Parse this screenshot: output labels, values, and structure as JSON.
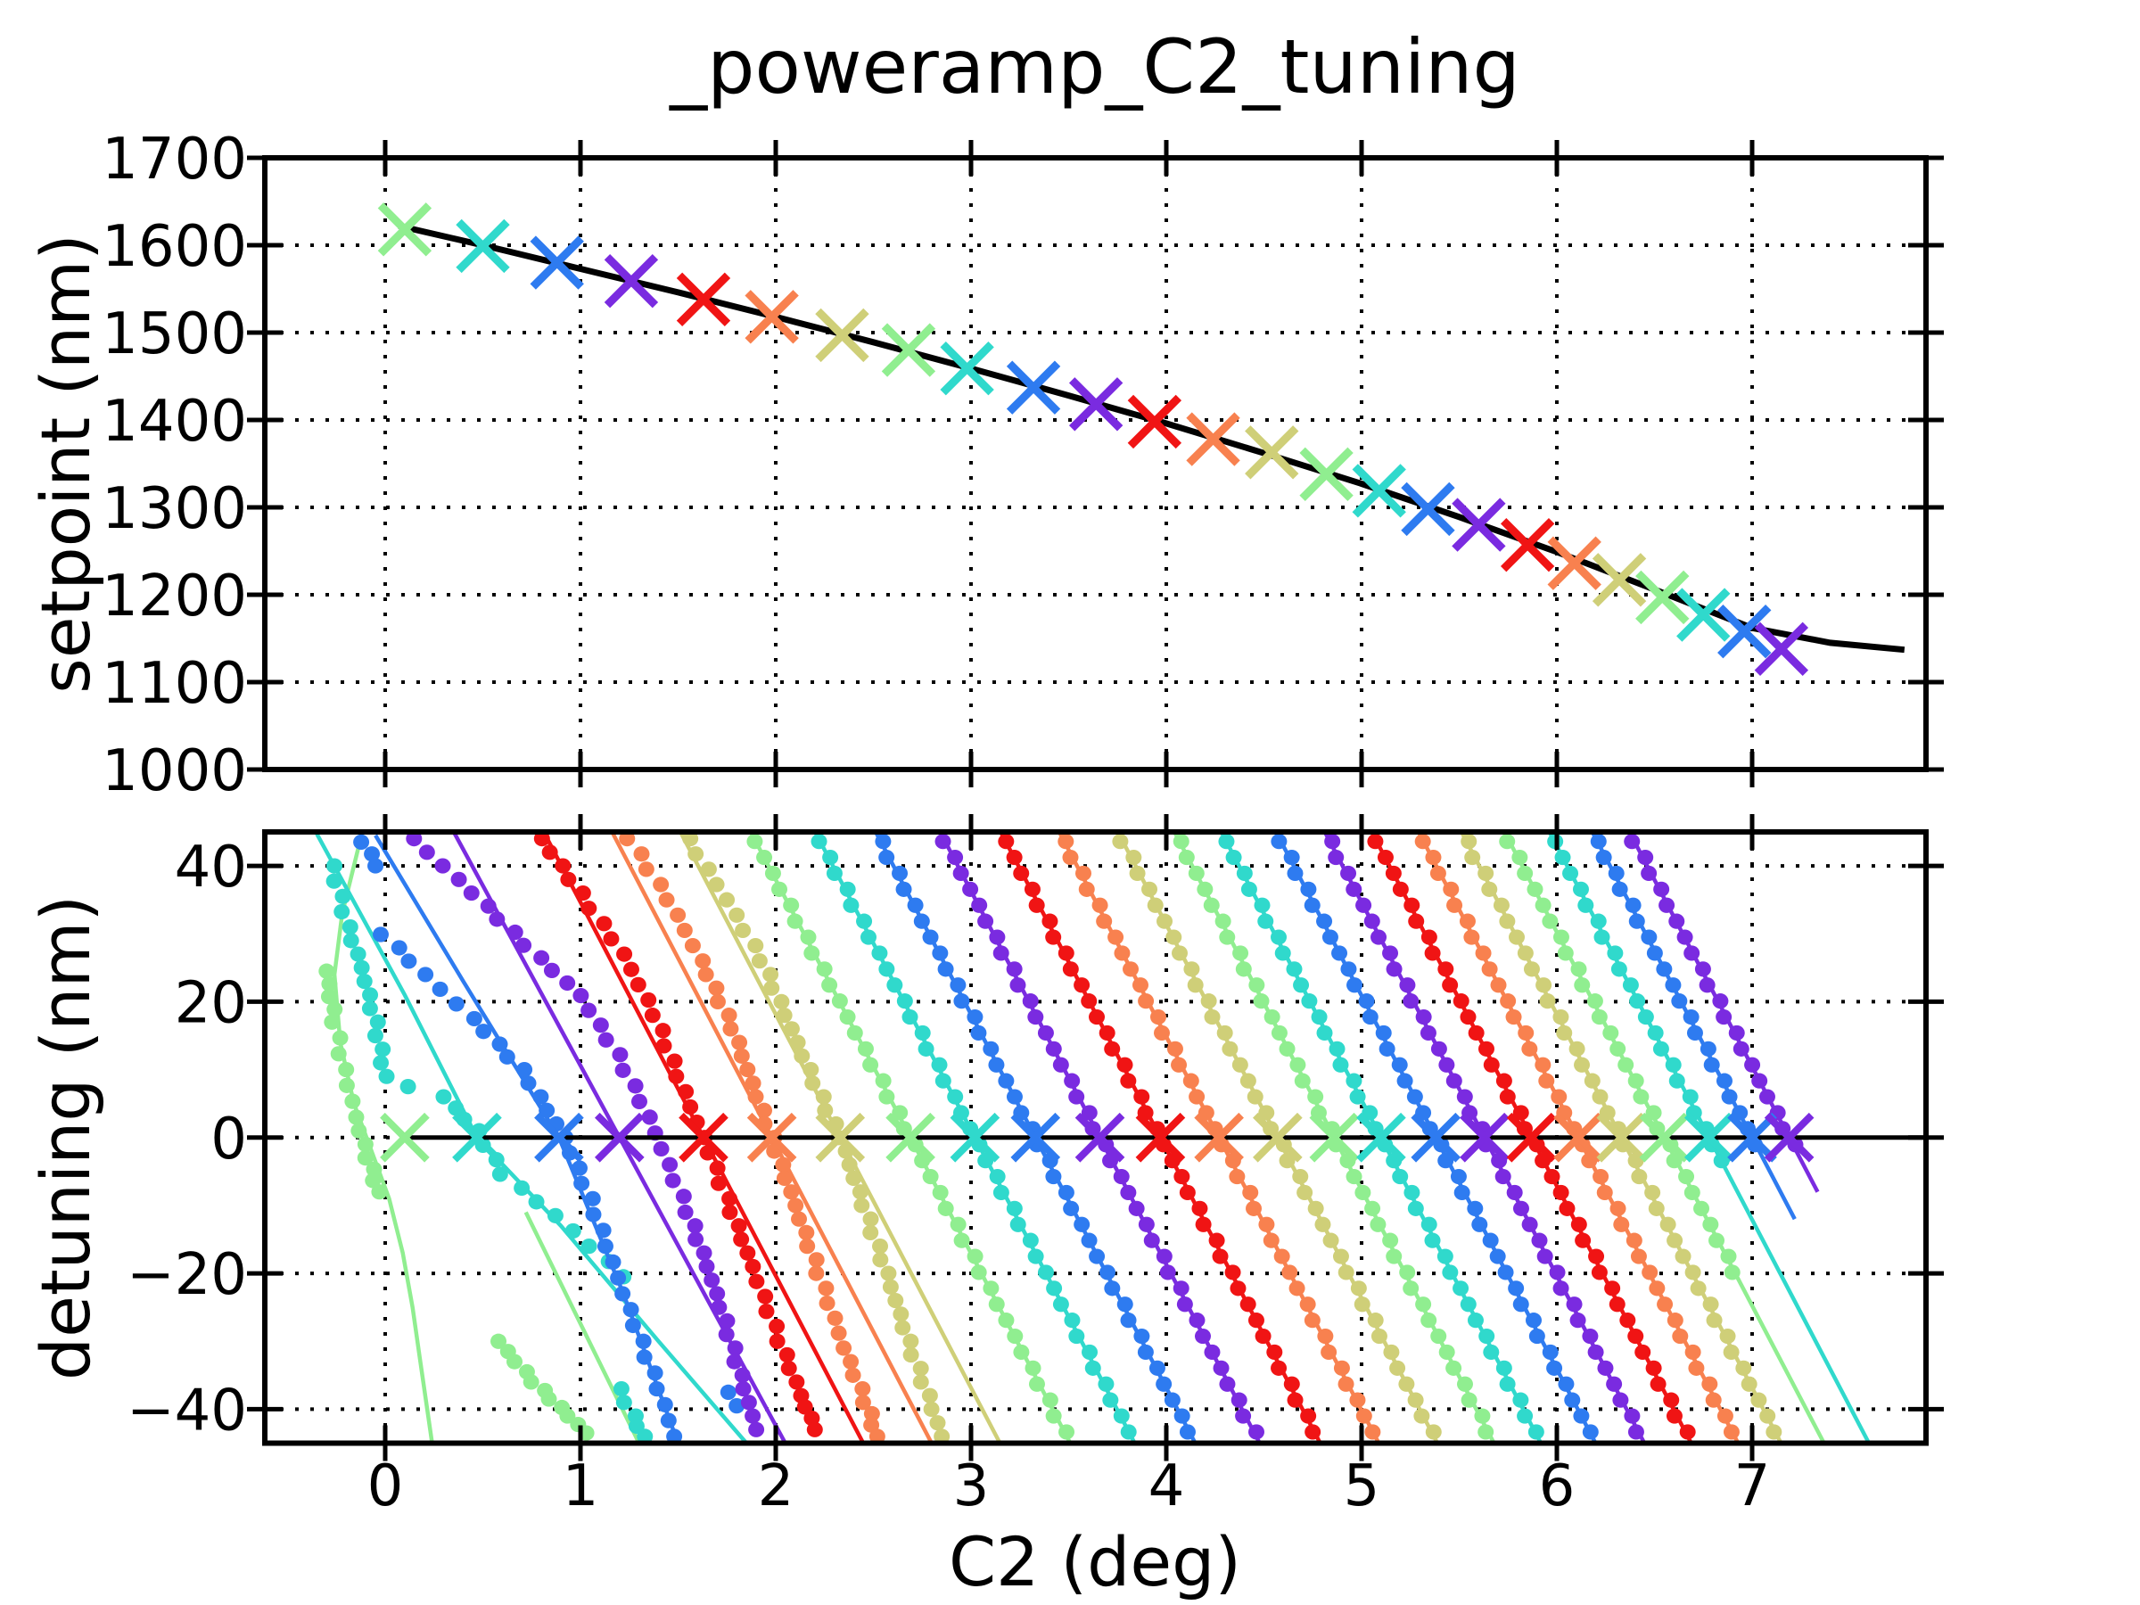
{
  "title": "_poweramp_C2_tuning",
  "top_plot": {
    "ylabel": "setpoint (nm)",
    "ytick_labels": [
      "1700",
      "1600",
      "1500",
      "1400",
      "1300",
      "1200",
      "1100",
      "1000"
    ],
    "ytick_values": [
      1700,
      1600,
      1500,
      1400,
      1300,
      1200,
      1100,
      1000
    ],
    "ylim": [
      1000,
      1700
    ],
    "xlim": [
      -0.616,
      7.89
    ],
    "grid": "dotted"
  },
  "bottom_plot": {
    "ylabel": "detuning (nm)",
    "xlabel": "C2 (deg)",
    "ytick_labels": [
      "40",
      "20",
      "0",
      "−20",
      "−40"
    ],
    "ytick_values": [
      40,
      20,
      0,
      -20,
      -40
    ],
    "xtick_labels": [
      "0",
      "1",
      "2",
      "3",
      "4",
      "5",
      "6",
      "7"
    ],
    "xtick_values": [
      0,
      1,
      2,
      3,
      4,
      5,
      6,
      7
    ],
    "ylim": [
      -45,
      45
    ],
    "xlim": [
      -0.616,
      7.89
    ],
    "grid": "dotted"
  },
  "palette": [
    "#90EE90",
    "#30D9CC",
    "#2E7BF0",
    "#7A2BE0",
    "#F01414",
    "#F8814F",
    "#CFCF78"
  ],
  "black": "#000000",
  "chart_data": [
    {
      "type": "scatter",
      "title": "_poweramp_C2_tuning",
      "ylabel": "setpoint (nm)",
      "xlabel": "",
      "ylim": [
        1000,
        1700
      ],
      "xlim": [
        -0.616,
        7.89
      ],
      "legend": "none",
      "fit_line": [
        [
          0.07,
          1622
        ],
        [
          0.5,
          1600
        ],
        [
          1.0,
          1573
        ],
        [
          1.5,
          1546
        ],
        [
          2.0,
          1518
        ],
        [
          2.5,
          1489
        ],
        [
          3.0,
          1459
        ],
        [
          3.5,
          1428
        ],
        [
          4.0,
          1396
        ],
        [
          4.5,
          1362
        ],
        [
          5.0,
          1327
        ],
        [
          5.5,
          1289
        ],
        [
          6.0,
          1249
        ],
        [
          6.5,
          1206
        ],
        [
          7.0,
          1162
        ],
        [
          7.4,
          1145
        ],
        [
          7.78,
          1137
        ]
      ],
      "markers_x": [
        0.1,
        0.5,
        0.88,
        1.26,
        1.63,
        1.98,
        2.34,
        2.68,
        2.98,
        3.32,
        3.64,
        3.94,
        4.24,
        4.54,
        4.82,
        5.09,
        5.34,
        5.6,
        5.85,
        6.09,
        6.32,
        6.54,
        6.75,
        6.96,
        7.15
      ],
      "markers_y": [
        1618,
        1599,
        1580,
        1559,
        1538,
        1518,
        1497,
        1480,
        1459,
        1437,
        1418,
        1398,
        1378,
        1363,
        1338,
        1319,
        1298,
        1280,
        1257,
        1236,
        1217,
        1197,
        1177,
        1158,
        1138
      ]
    },
    {
      "type": "scatter",
      "ylabel": "detuning (nm)",
      "xlabel": "C2 (deg)",
      "ylim": [
        -45,
        45
      ],
      "xlim": [
        -0.616,
        7.89
      ],
      "zero_line_x": [
        0.08,
        7.89
      ],
      "scans": [
        {
          "c": 0,
          "x0": 0.1,
          "fit_path": [
            [
              -0.12,
              44.7
            ],
            [
              -0.22,
              33
            ],
            [
              -0.26,
              24
            ],
            [
              -0.23,
              14
            ],
            [
              -0.16,
              5
            ],
            [
              -0.07,
              -2
            ],
            [
              0.02,
              -9
            ],
            [
              0.09,
              -17
            ],
            [
              0.14,
              -25
            ],
            [
              0.18,
              -33
            ],
            [
              0.22,
              -41
            ],
            [
              0.24,
              -45
            ]
          ],
          "extra_lines": [
            [
              [
                0.72,
                -11
              ],
              [
                1.3,
                -45
              ]
            ]
          ],
          "dot_paths": [
            [
              [
                -0.3,
                24.5
              ],
              [
                -0.26,
                17
              ],
              [
                -0.21,
                10
              ],
              [
                -0.15,
                3
              ],
              [
                -0.09,
                -3
              ],
              [
                -0.03,
                -8
              ]
            ],
            [
              [
                0.58,
                -30
              ],
              [
                0.67,
                -33
              ],
              [
                0.76,
                -36
              ],
              [
                0.85,
                -38.5
              ],
              [
                0.94,
                -41
              ],
              [
                1.03,
                -43.5
              ]
            ]
          ]
        },
        {
          "c": 1,
          "x0": 0.47,
          "fit_path": [
            [
              -0.35,
              44.7
            ],
            [
              0.1,
              21
            ],
            [
              0.47,
              0
            ],
            [
              0.9,
              -13
            ],
            [
              1.4,
              -30
            ],
            [
              1.85,
              -45
            ]
          ],
          "dot_paths": [
            [
              [
                -0.27,
                40
              ],
              [
                -0.19,
                31
              ],
              [
                -0.12,
                25
              ],
              [
                -0.05,
                17
              ],
              [
                0.0,
                9
              ],
              [
                0.12,
                7.5
              ],
              [
                0.3,
                6
              ],
              [
                0.47,
                1
              ],
              [
                0.6,
                -5.4
              ],
              [
                0.87,
                -11.5
              ],
              [
                1.05,
                -16
              ],
              [
                1.22,
                -20.5
              ]
            ],
            [
              [
                1.2,
                -37
              ],
              [
                1.27,
                -41
              ],
              [
                1.33,
                -44
              ]
            ]
          ]
        },
        {
          "c": 2,
          "x0": 0.89,
          "fit_path": [
            [
              -0.05,
              44.5
            ],
            [
              0.4,
              23
            ],
            [
              0.89,
              0
            ],
            [
              1.22,
              -23
            ],
            [
              1.5,
              -45
            ]
          ],
          "dot_paths": [
            [
              [
                -0.11,
                43.5
              ],
              [
                -0.05,
                40
              ]
            ],
            [
              [
                -0.01,
                29.9
              ],
              [
                0.2,
                24
              ],
              [
                0.45,
                17.5
              ],
              [
                0.7,
                10
              ],
              [
                0.92,
                0
              ],
              [
                1.05,
                -9
              ],
              [
                1.22,
                -23
              ],
              [
                1.4,
                -37
              ],
              [
                1.48,
                -44
              ]
            ],
            [
              [
                1.77,
                -37.5
              ],
              [
                1.8,
                -39.5
              ]
            ]
          ]
        },
        {
          "c": 3,
          "x0": 1.2,
          "slope": -53,
          "dot_paths": [
            [
              [
                0.14,
                44
              ],
              [
                0.45,
                36
              ],
              [
                0.72,
                28.3
              ],
              [
                1.0,
                20.9
              ],
              [
                1.19,
                12.2
              ],
              [
                1.35,
                3
              ],
              [
                1.45,
                -4
              ],
              [
                1.55,
                -11
              ],
              [
                1.65,
                -19
              ],
              [
                1.74,
                -27
              ],
              [
                1.82,
                -35
              ],
              [
                1.9,
                -43
              ]
            ]
          ]
        },
        {
          "c": 4,
          "x0": 1.63,
          "slope": -55,
          "dot_paths": [
            [
              [
                0.8,
                44
              ],
              [
                1.0,
                36
              ],
              [
                1.22,
                27
              ],
              [
                1.38,
                18
              ],
              [
                1.5,
                9
              ],
              [
                1.63,
                0
              ],
              [
                1.75,
                -9
              ],
              [
                1.88,
                -19
              ],
              [
                2.02,
                -30
              ],
              [
                2.13,
                -38
              ],
              [
                2.2,
                -43
              ]
            ]
          ]
        },
        {
          "c": 5,
          "x0": 1.98,
          "slope": -55,
          "dot_paths": [
            [
              [
                1.25,
                44
              ],
              [
                1.45,
                35
              ],
              [
                1.62,
                26
              ],
              [
                1.78,
                16
              ],
              [
                1.88,
                8
              ],
              [
                1.98,
                0
              ],
              [
                2.1,
                -10
              ],
              [
                2.22,
                -20
              ],
              [
                2.35,
                -31
              ],
              [
                2.46,
                -39
              ],
              [
                2.52,
                -44
              ]
            ]
          ]
        },
        {
          "c": 6,
          "x0": 2.33,
          "slope": -55,
          "dot_paths": [
            [
              [
                1.55,
                44
              ],
              [
                1.75,
                35
              ],
              [
                1.93,
                26
              ],
              [
                2.08,
                16
              ],
              [
                2.2,
                8
              ],
              [
                2.33,
                0
              ],
              [
                2.45,
                -10
              ],
              [
                2.57,
                -20
              ],
              [
                2.68,
                -30
              ],
              [
                2.78,
                -38
              ],
              [
                2.85,
                -44
              ]
            ]
          ]
        },
        {
          "c": 0,
          "x0": 2.69,
          "slope": -55
        },
        {
          "c": 1,
          "x0": 3.02,
          "slope": -55
        },
        {
          "c": 2,
          "x0": 3.33,
          "slope": -55
        },
        {
          "c": 3,
          "x0": 3.66,
          "slope": -55
        },
        {
          "c": 4,
          "x0": 3.97,
          "slope": -55
        },
        {
          "c": 5,
          "x0": 4.27,
          "slope": -55
        },
        {
          "c": 6,
          "x0": 4.57,
          "slope": -55
        },
        {
          "c": 0,
          "x0": 4.86,
          "slope": -55
        },
        {
          "c": 1,
          "x0": 5.1,
          "slope": -55
        },
        {
          "c": 2,
          "x0": 5.38,
          "slope": -55
        },
        {
          "c": 3,
          "x0": 5.63,
          "slope": -55
        },
        {
          "c": 4,
          "x0": 5.87,
          "slope": -55
        },
        {
          "c": 5,
          "x0": 6.11,
          "slope": -55
        },
        {
          "c": 6,
          "x0": 6.33,
          "slope": -55
        },
        {
          "c": 0,
          "x0": 6.55,
          "slope": -55,
          "dots_min": -20
        },
        {
          "c": 1,
          "x0": 6.78,
          "slope": -55,
          "dots_min": -4
        },
        {
          "c": 2,
          "x0": 7.0,
          "slope": -55,
          "dots_min": -3,
          "line_min": -12
        },
        {
          "c": 3,
          "x0": 7.19,
          "slope": -55,
          "dots_min": -2,
          "line_min": -8
        }
      ]
    }
  ]
}
